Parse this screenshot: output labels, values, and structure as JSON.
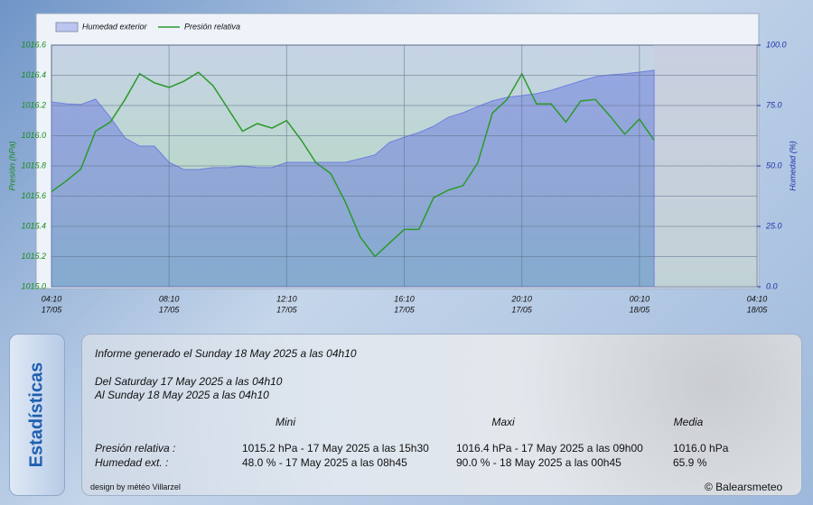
{
  "chart_data": {
    "type": "line-area",
    "x": [
      "17/05 04:10",
      "17/05 04:40",
      "17/05 05:10",
      "17/05 05:40",
      "17/05 06:10",
      "17/05 06:40",
      "17/05 07:10",
      "17/05 07:40",
      "17/05 08:10",
      "17/05 08:40",
      "17/05 09:10",
      "17/05 09:40",
      "17/05 10:10",
      "17/05 10:40",
      "17/05 11:10",
      "17/05 11:40",
      "17/05 12:10",
      "17/05 12:40",
      "17/05 13:10",
      "17/05 13:40",
      "17/05 14:10",
      "17/05 14:40",
      "17/05 15:10",
      "17/05 15:40",
      "17/05 16:10",
      "17/05 16:40",
      "17/05 17:10",
      "17/05 17:40",
      "17/05 18:10",
      "17/05 18:40",
      "17/05 19:10",
      "17/05 19:40",
      "17/05 20:10",
      "17/05 20:40",
      "17/05 21:10",
      "17/05 21:40",
      "17/05 22:10",
      "17/05 22:40",
      "17/05 23:10",
      "17/05 23:40",
      "18/05 00:10",
      "18/05 00:40"
    ],
    "series": [
      {
        "name": "Humedad exterior",
        "color": "#6f7fe0",
        "axis": "y2",
        "values": [
          76.5,
          75.7,
          75.4,
          77.6,
          70.1,
          61.6,
          58.2,
          58.2,
          51.5,
          48.5,
          48.5,
          49.3,
          49.3,
          50.0,
          49.3,
          49.3,
          51.5,
          51.5,
          51.5,
          51.5,
          51.5,
          53.0,
          54.5,
          59.7,
          61.9,
          63.8,
          66.4,
          70.1,
          72.0,
          74.6,
          76.9,
          78.4,
          79.1,
          79.9,
          81.3,
          83.2,
          85.1,
          86.9,
          87.7,
          88.1,
          88.8,
          89.6
        ]
      },
      {
        "name": "Presión relativa",
        "color": "#2a9a2a",
        "values": [
          1015.63,
          1015.7,
          1015.78,
          1016.03,
          1016.09,
          1016.24,
          1016.41,
          1016.35,
          1016.32,
          1016.36,
          1016.42,
          1016.33,
          1016.18,
          1016.03,
          1016.08,
          1016.05,
          1016.1,
          1015.97,
          1015.82,
          1015.75,
          1015.56,
          1015.33,
          1015.2,
          1015.29,
          1015.38,
          1015.38,
          1015.59,
          1015.64,
          1015.67,
          1015.82,
          1016.15,
          1016.24,
          1016.41,
          1016.21,
          1016.21,
          1016.09,
          1016.23,
          1016.24,
          1016.13,
          1016.01,
          1016.11,
          1015.97
        ]
      }
    ],
    "ylabel": "Presión (hPa)",
    "y2label": "Humedad (%)",
    "xlim": [
      "17/05 04:10",
      "18/05 04:10"
    ],
    "xticks": [
      {
        "value": "17/05 04:10",
        "label": [
          "04:10",
          "17/05"
        ]
      },
      {
        "value": "17/05 08:10",
        "label": [
          "08:10",
          "17/05"
        ]
      },
      {
        "value": "17/05 12:10",
        "label": [
          "12:10",
          "17/05"
        ]
      },
      {
        "value": "17/05 16:10",
        "label": [
          "16:10",
          "17/05"
        ]
      },
      {
        "value": "17/05 20:10",
        "label": [
          "20:10",
          "17/05"
        ]
      },
      {
        "value": "18/05 00:10",
        "label": [
          "00:10",
          "18/05"
        ]
      },
      {
        "value": "18/05 04:10",
        "label": [
          "04:10",
          "18/05"
        ]
      }
    ],
    "ylim": [
      1015.0,
      1016.6
    ],
    "yticks": [
      {
        "value": 1015.0,
        "label": "1015.0"
      },
      1015.2,
      1015.4,
      1015.6,
      1015.8,
      {
        "value": 1016.0,
        "label": "1016.0"
      },
      1016.2,
      1016.4,
      1016.6
    ],
    "y2lim": [
      0,
      100
    ],
    "y2ticks": [
      {
        "value": 0,
        "label": "0.0"
      },
      {
        "value": 25,
        "label": "25.0"
      },
      {
        "value": 50,
        "label": "50.0"
      },
      {
        "value": 75,
        "label": "75.0"
      },
      {
        "value": 100,
        "label": "100.0"
      }
    ],
    "grid": true
  },
  "stats": {
    "tab": "Estadísticas",
    "report": "Informe generado el Sunday 18 May 2025 a las 04h10",
    "from": "Del Saturday 17 May 2025 a las 04h10",
    "to": "Al Sunday 18 May 2025 a las 04h10",
    "headers": [
      "Mini",
      "Maxi",
      "Media"
    ],
    "rows": [
      [
        "Presión relativa :",
        "1015.2 hPa - 17 May 2025 a las 15h30",
        "1016.4 hPa - 17 May 2025 a las 09h00",
        "1016.0 hPa"
      ],
      [
        "Humedad ext. :",
        "48.0 % - 17 May 2025 a las 08h45",
        "90.0 % - 18 May 2025 a las 00h45",
        "65.9 %"
      ]
    ],
    "design": "design by météo Villarzel",
    "credit": "© Balearsmeteo"
  }
}
